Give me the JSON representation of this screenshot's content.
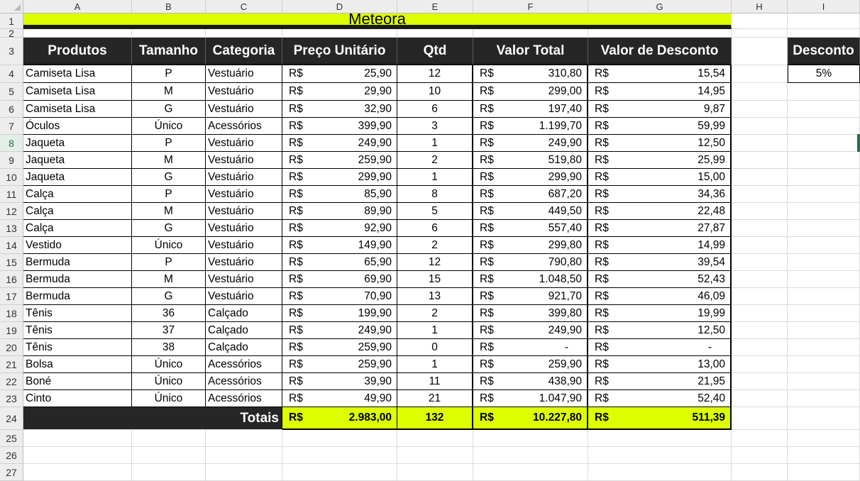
{
  "columns": [
    "A",
    "B",
    "C",
    "D",
    "E",
    "F",
    "G",
    "H",
    "I"
  ],
  "rows": [
    1,
    2,
    3,
    4,
    5,
    6,
    7,
    8,
    9,
    10,
    11,
    12,
    13,
    14,
    15,
    16,
    17,
    18,
    19,
    20,
    21,
    22,
    23,
    24,
    25,
    26,
    27
  ],
  "selected_row": 8,
  "title": "Meteora",
  "headers": [
    "Produtos",
    "Tamanho",
    "Categoria",
    "Preço Unitário",
    "Qtd",
    "Valor Total",
    "Valor de Desconto"
  ],
  "currency": "R$",
  "items": [
    {
      "produto": "Camiseta Lisa",
      "tamanho": "P",
      "categoria": "Vestuário",
      "preco": "25,90",
      "qtd": "12",
      "total": "310,80",
      "desconto": "15,54"
    },
    {
      "produto": "Camiseta Lisa",
      "tamanho": "M",
      "categoria": "Vestuário",
      "preco": "29,90",
      "qtd": "10",
      "total": "299,00",
      "desconto": "14,95"
    },
    {
      "produto": "Camiseta Lisa",
      "tamanho": "G",
      "categoria": "Vestuário",
      "preco": "32,90",
      "qtd": "6",
      "total": "197,40",
      "desconto": "9,87"
    },
    {
      "produto": "Óculos",
      "tamanho": "Único",
      "categoria": "Acessórios",
      "preco": "399,90",
      "qtd": "3",
      "total": "1.199,70",
      "desconto": "59,99"
    },
    {
      "produto": "Jaqueta",
      "tamanho": "P",
      "categoria": "Vestuário",
      "preco": "249,90",
      "qtd": "1",
      "total": "249,90",
      "desconto": "12,50"
    },
    {
      "produto": "Jaqueta",
      "tamanho": "M",
      "categoria": "Vestuário",
      "preco": "259,90",
      "qtd": "2",
      "total": "519,80",
      "desconto": "25,99"
    },
    {
      "produto": "Jaqueta",
      "tamanho": "G",
      "categoria": "Vestuário",
      "preco": "299,90",
      "qtd": "1",
      "total": "299,90",
      "desconto": "15,00"
    },
    {
      "produto": "Calça",
      "tamanho": "P",
      "categoria": "Vestuário",
      "preco": "85,90",
      "qtd": "8",
      "total": "687,20",
      "desconto": "34,36"
    },
    {
      "produto": "Calça",
      "tamanho": "M",
      "categoria": "Vestuário",
      "preco": "89,90",
      "qtd": "5",
      "total": "449,50",
      "desconto": "22,48"
    },
    {
      "produto": "Calça",
      "tamanho": "G",
      "categoria": "Vestuário",
      "preco": "92,90",
      "qtd": "6",
      "total": "557,40",
      "desconto": "27,87"
    },
    {
      "produto": "Vestido",
      "tamanho": "Único",
      "categoria": "Vestuário",
      "preco": "149,90",
      "qtd": "2",
      "total": "299,80",
      "desconto": "14,99"
    },
    {
      "produto": "Bermuda",
      "tamanho": "P",
      "categoria": "Vestuário",
      "preco": "65,90",
      "qtd": "12",
      "total": "790,80",
      "desconto": "39,54"
    },
    {
      "produto": "Bermuda",
      "tamanho": "M",
      "categoria": "Vestuário",
      "preco": "69,90",
      "qtd": "15",
      "total": "1.048,50",
      "desconto": "52,43"
    },
    {
      "produto": "Bermuda",
      "tamanho": "G",
      "categoria": "Vestuário",
      "preco": "70,90",
      "qtd": "13",
      "total": "921,70",
      "desconto": "46,09"
    },
    {
      "produto": "Tênis",
      "tamanho": "36",
      "categoria": "Calçado",
      "preco": "199,90",
      "qtd": "2",
      "total": "399,80",
      "desconto": "19,99"
    },
    {
      "produto": "Tênis",
      "tamanho": "37",
      "categoria": "Calçado",
      "preco": "249,90",
      "qtd": "1",
      "total": "249,90",
      "desconto": "12,50"
    },
    {
      "produto": "Tênis",
      "tamanho": "38",
      "categoria": "Calçado",
      "preco": "259,90",
      "qtd": "0",
      "total": "-",
      "desconto": "-"
    },
    {
      "produto": "Bolsa",
      "tamanho": "Único",
      "categoria": "Acessórios",
      "preco": "259,90",
      "qtd": "1",
      "total": "259,90",
      "desconto": "13,00"
    },
    {
      "produto": "Boné",
      "tamanho": "Único",
      "categoria": "Acessórios",
      "preco": "39,90",
      "qtd": "11",
      "total": "438,90",
      "desconto": "21,95"
    },
    {
      "produto": "Cinto",
      "tamanho": "Único",
      "categoria": "Acessórios",
      "preco": "49,90",
      "qtd": "21",
      "total": "1.047,90",
      "desconto": "52,40"
    }
  ],
  "totals": {
    "label": "Totais",
    "preco": "2.983,00",
    "qtd": "132",
    "total": "10.227,80",
    "desconto": "511,39"
  },
  "discount_box": {
    "label": "Desconto",
    "value": "5%"
  },
  "colors": {
    "title_bg": "#ddff00",
    "header_bg": "#262626",
    "selection": "#217346"
  }
}
